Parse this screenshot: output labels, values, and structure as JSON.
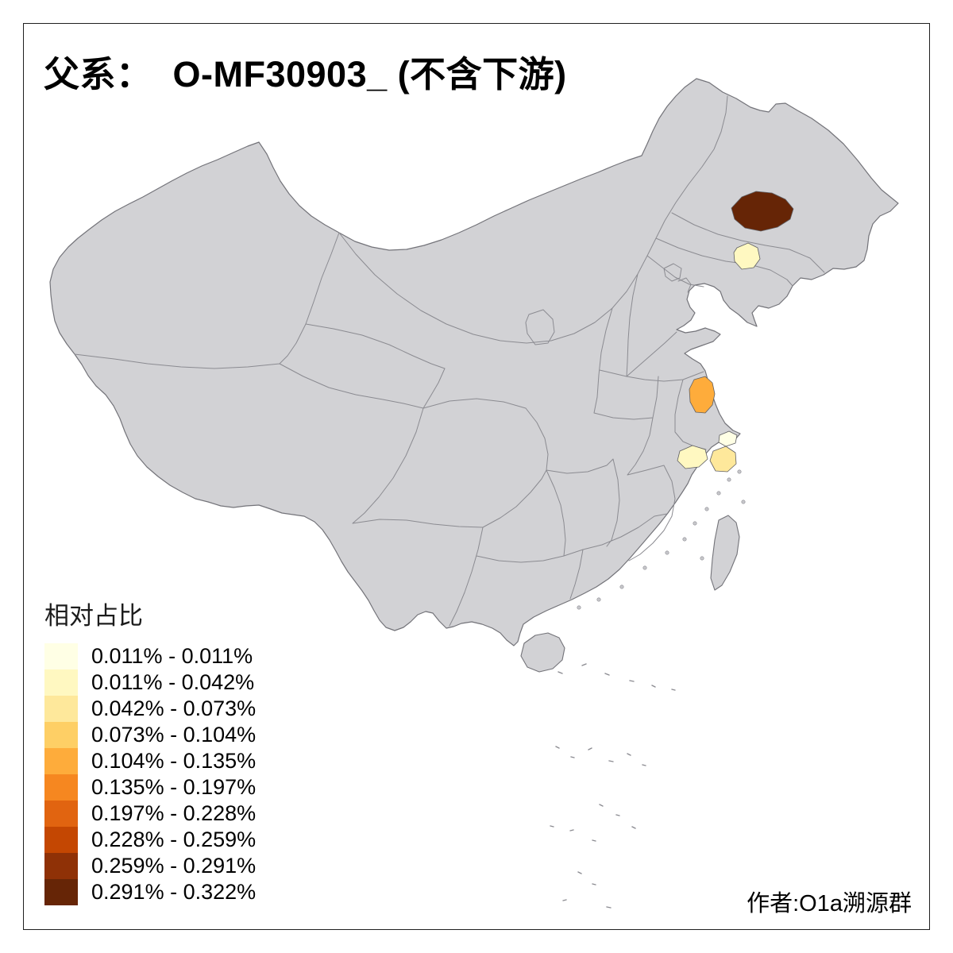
{
  "title": "父系：  O-MF30903_ (不含下游)",
  "legend": {
    "title": "相对占比",
    "items": [
      {
        "label": "0.011% - 0.011%",
        "color": "#FFFFE5"
      },
      {
        "label": "0.011% - 0.042%",
        "color": "#FFF8C1"
      },
      {
        "label": "0.042% - 0.073%",
        "color": "#FEE89B"
      },
      {
        "label": "0.073% - 0.104%",
        "color": "#FECF65"
      },
      {
        "label": "0.104% - 0.135%",
        "color": "#FEAC3B"
      },
      {
        "label": "0.135% - 0.197%",
        "color": "#F68720"
      },
      {
        "label": "0.197% - 0.228%",
        "color": "#E16410"
      },
      {
        "label": "0.228% - 0.259%",
        "color": "#C44702"
      },
      {
        "label": "0.259% - 0.291%",
        "color": "#8F3106"
      },
      {
        "label": "0.291% - 0.322%",
        "color": "#662506"
      }
    ]
  },
  "credit": "作者:O1a溯源群",
  "map": {
    "base_fill": "#D2D2D5",
    "country_outline_color": "#737379",
    "border_color": "#8B8B91",
    "regions": [
      {
        "id": "heilongjiang-harbin-area",
        "value_range": "0.291% - 0.322%",
        "color": "#662506"
      },
      {
        "id": "liaoning-north-area",
        "value_range": "0.011% - 0.042%",
        "color": "#FFF8C1"
      },
      {
        "id": "jiangsu-central-area",
        "value_range": "0.104% - 0.135%",
        "color": "#FEAC3B"
      },
      {
        "id": "shanghai-adjacent-area",
        "value_range": "0.011% - 0.011%",
        "color": "#FFFFE5"
      },
      {
        "id": "zhejiang-north-area",
        "value_range": "0.011% - 0.042%",
        "color": "#FFF8C1"
      },
      {
        "id": "zhejiang-ningbo-area",
        "value_range": "0.042% - 0.073%",
        "color": "#FEE89B"
      }
    ]
  }
}
